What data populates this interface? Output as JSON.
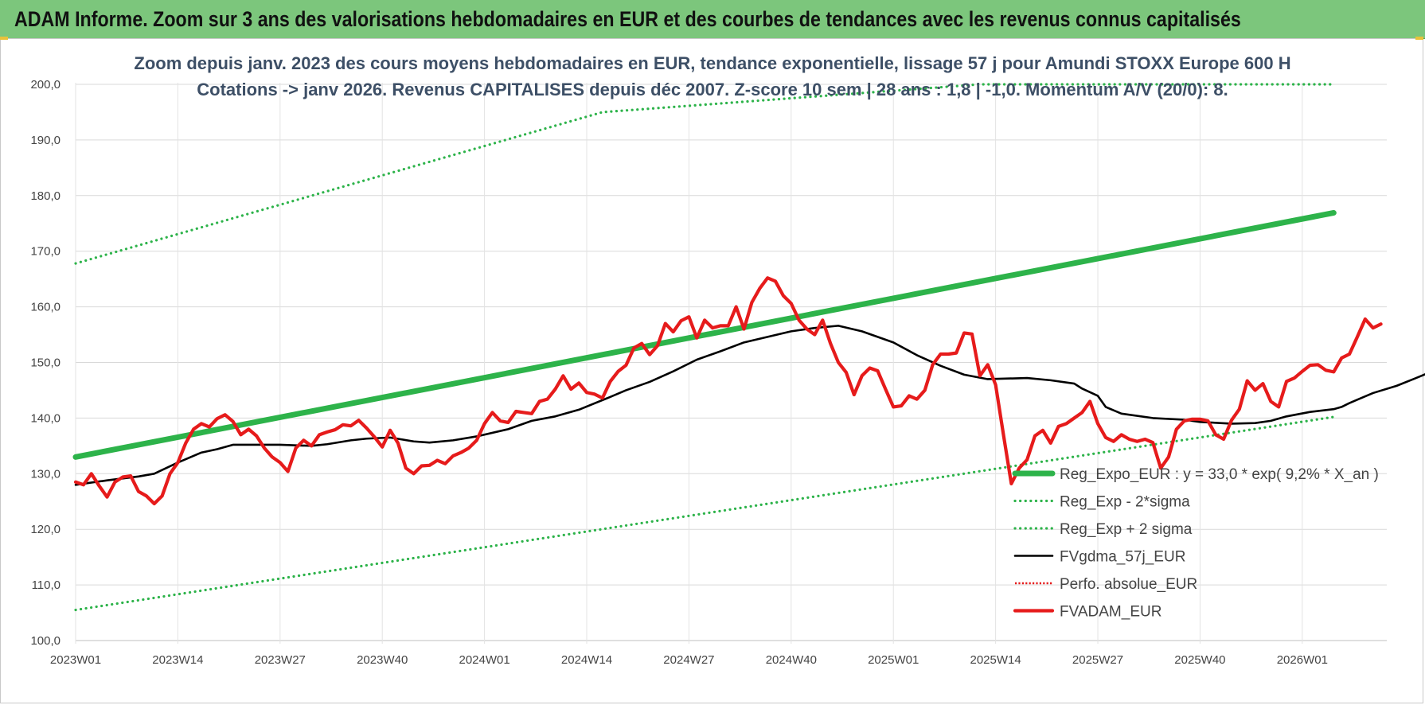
{
  "header": {
    "title": "ADAM Informe. Zoom sur 3 ans des valorisations hebdomadaires en EUR et des courbes de tendances avec les revenus connus capitalisés"
  },
  "chart_data": {
    "type": "line",
    "title": "Zoom depuis janv. 2023 des cours moyens hebdomadaires en EUR, tendance exponentielle, lissage 57 j pour Amundi STOXX Europe 600 H",
    "subtitle": "Cotations -> janv 2026. Revenus CAPITALISES depuis déc 2007. Z-score 10 sem | 28 ans : 1,8 | -1,0. Momentum A/V (20/0): 8.",
    "xlabel": "",
    "ylabel": "",
    "ylim": [
      100,
      200
    ],
    "yticks": [
      "100,0",
      "110,0",
      "120,0",
      "130,0",
      "140,0",
      "150,0",
      "160,0",
      "170,0",
      "180,0",
      "190,0",
      "200,0"
    ],
    "xticks": [
      "2023W01",
      "2023W14",
      "2023W27",
      "2023W40",
      "2024W01",
      "2024W14",
      "2024W27",
      "2024W40",
      "2025W01",
      "2025W14",
      "2025W27",
      "2025W40",
      "2026W01"
    ],
    "x_start_week": "2023W01",
    "x_end_week": "2026W05",
    "grid": "horizontal",
    "legend_position": "bottom-right",
    "series": [
      {
        "name": "Reg_Expo_EUR : y = 33,0 * exp( 9,2% *  X_an )",
        "color": "#2db34a",
        "style": "thick",
        "points": [
          [
            0,
            133.0
          ],
          [
            160,
            176.9
          ]
        ]
      },
      {
        "name": "Reg_Exp - 2*sigma",
        "color": "#2db34a",
        "style": "dotted",
        "points": [
          [
            0,
            105.5
          ],
          [
            160,
            140.2
          ]
        ]
      },
      {
        "name": "Reg_Exp + 2 sigma",
        "color": "#2db34a",
        "style": "dotted",
        "points": [
          [
            0,
            167.8
          ],
          [
            67,
            195.0
          ],
          [
            115,
            200.0
          ],
          [
            160,
            200.0
          ]
        ]
      },
      {
        "name": "FVgdma_57j_EUR",
        "color": "#000000",
        "style": "solid",
        "points": [
          [
            0,
            128.0
          ],
          [
            4,
            128.8
          ],
          [
            8,
            129.5
          ],
          [
            10,
            130.0
          ],
          [
            13,
            132.0
          ],
          [
            16,
            133.8
          ],
          [
            18,
            134.4
          ],
          [
            20,
            135.2
          ],
          [
            26,
            135.2
          ],
          [
            30,
            135.0
          ],
          [
            32,
            135.3
          ],
          [
            35,
            136.0
          ],
          [
            37,
            136.3
          ],
          [
            40,
            136.5
          ],
          [
            43,
            135.8
          ],
          [
            45,
            135.6
          ],
          [
            48,
            136.0
          ],
          [
            51,
            136.7
          ],
          [
            55,
            138.0
          ],
          [
            58,
            139.5
          ],
          [
            61,
            140.3
          ],
          [
            64,
            141.5
          ],
          [
            68,
            143.8
          ],
          [
            70,
            145.0
          ],
          [
            73,
            146.5
          ],
          [
            76,
            148.4
          ],
          [
            79,
            150.5
          ],
          [
            82,
            152.0
          ],
          [
            85,
            153.6
          ],
          [
            88,
            154.6
          ],
          [
            91,
            155.6
          ],
          [
            94,
            156.2
          ],
          [
            97,
            156.6
          ],
          [
            100,
            155.6
          ],
          [
            104,
            153.6
          ],
          [
            107,
            151.3
          ],
          [
            110,
            149.4
          ],
          [
            113,
            147.8
          ],
          [
            116,
            147.0
          ],
          [
            121,
            147.2
          ],
          [
            124,
            146.8
          ],
          [
            127,
            146.2
          ],
          [
            128,
            145.3
          ],
          [
            130,
            144.0
          ],
          [
            131,
            142.0
          ],
          [
            133,
            140.8
          ],
          [
            137,
            140.0
          ],
          [
            141,
            139.7
          ],
          [
            143,
            139.3
          ],
          [
            147,
            139.0
          ],
          [
            150,
            139.1
          ],
          [
            152,
            139.5
          ],
          [
            154,
            140.3
          ],
          [
            157,
            141.1
          ],
          [
            160,
            141.6
          ],
          [
            161,
            142.0
          ],
          [
            162,
            142.7
          ],
          [
            163,
            143.3
          ],
          [
            165,
            144.5
          ],
          [
            168,
            145.8
          ],
          [
            171,
            147.5
          ],
          [
            174,
            149.3
          ],
          [
            177,
            151.0
          ],
          [
            180,
            152.8
          ],
          [
            183,
            153.6
          ]
        ]
      },
      {
        "name": "Perfo. absolue_EUR",
        "color": "#e61b1b",
        "style": "dotted",
        "points": []
      },
      {
        "name": "FVADAM_EUR",
        "color": "#e61b1b",
        "style": "thick",
        "points": [
          [
            0,
            128.5
          ],
          [
            1,
            128.0
          ],
          [
            2,
            130.0
          ],
          [
            3,
            127.8
          ],
          [
            4,
            125.8
          ],
          [
            5,
            128.5
          ],
          [
            6,
            129.4
          ],
          [
            7,
            129.6
          ],
          [
            8,
            126.8
          ],
          [
            9,
            126.0
          ],
          [
            10,
            124.6
          ],
          [
            11,
            126.0
          ],
          [
            12,
            130.0
          ],
          [
            13,
            132.0
          ],
          [
            14,
            135.5
          ],
          [
            15,
            138.0
          ],
          [
            16,
            139.0
          ],
          [
            17,
            138.4
          ],
          [
            18,
            139.9
          ],
          [
            19,
            140.6
          ],
          [
            20,
            139.4
          ],
          [
            21,
            137.0
          ],
          [
            22,
            138.0
          ],
          [
            23,
            136.8
          ],
          [
            24,
            134.6
          ],
          [
            25,
            133.0
          ],
          [
            26,
            132.0
          ],
          [
            27,
            130.4
          ],
          [
            28,
            134.6
          ],
          [
            29,
            136.0
          ],
          [
            30,
            135.0
          ],
          [
            31,
            137.0
          ],
          [
            32,
            137.5
          ],
          [
            33,
            137.9
          ],
          [
            34,
            138.8
          ],
          [
            35,
            138.6
          ],
          [
            36,
            139.6
          ],
          [
            37,
            138.2
          ],
          [
            38,
            136.6
          ],
          [
            39,
            134.8
          ],
          [
            40,
            137.8
          ],
          [
            41,
            135.5
          ],
          [
            42,
            131.0
          ],
          [
            43,
            130.0
          ],
          [
            44,
            131.4
          ],
          [
            45,
            131.5
          ],
          [
            46,
            132.4
          ],
          [
            47,
            131.8
          ],
          [
            48,
            133.2
          ],
          [
            49,
            133.8
          ],
          [
            50,
            134.6
          ],
          [
            51,
            136.0
          ],
          [
            52,
            139.0
          ],
          [
            53,
            141.0
          ],
          [
            54,
            139.5
          ],
          [
            55,
            139.2
          ],
          [
            56,
            141.2
          ],
          [
            57,
            141.0
          ],
          [
            58,
            140.8
          ],
          [
            59,
            143.0
          ],
          [
            60,
            143.4
          ],
          [
            61,
            145.2
          ],
          [
            62,
            147.6
          ],
          [
            63,
            145.2
          ],
          [
            64,
            146.3
          ],
          [
            65,
            144.6
          ],
          [
            66,
            144.3
          ],
          [
            67,
            143.6
          ],
          [
            68,
            146.6
          ],
          [
            69,
            148.4
          ],
          [
            70,
            149.5
          ],
          [
            71,
            152.6
          ],
          [
            72,
            153.4
          ],
          [
            73,
            151.4
          ],
          [
            74,
            153.0
          ],
          [
            75,
            157.0
          ],
          [
            76,
            155.5
          ],
          [
            77,
            157.5
          ],
          [
            78,
            158.2
          ],
          [
            79,
            154.4
          ],
          [
            80,
            157.6
          ],
          [
            81,
            156.2
          ],
          [
            82,
            156.6
          ],
          [
            83,
            156.6
          ],
          [
            84,
            160.0
          ],
          [
            85,
            156.0
          ],
          [
            86,
            160.8
          ],
          [
            87,
            163.3
          ],
          [
            88,
            165.2
          ],
          [
            89,
            164.6
          ],
          [
            90,
            162.0
          ],
          [
            91,
            160.6
          ],
          [
            92,
            157.6
          ],
          [
            93,
            156.0
          ],
          [
            94,
            155.0
          ],
          [
            95,
            157.6
          ],
          [
            96,
            153.4
          ],
          [
            97,
            150.0
          ],
          [
            98,
            148.2
          ],
          [
            99,
            144.2
          ],
          [
            100,
            147.6
          ],
          [
            101,
            149.0
          ],
          [
            102,
            148.5
          ],
          [
            103,
            145.2
          ],
          [
            104,
            142.0
          ],
          [
            105,
            142.2
          ],
          [
            106,
            144.0
          ],
          [
            107,
            143.4
          ],
          [
            108,
            145.0
          ],
          [
            109,
            149.6
          ],
          [
            110,
            151.5
          ],
          [
            111,
            151.5
          ],
          [
            112,
            151.7
          ],
          [
            113,
            155.3
          ],
          [
            114,
            155.1
          ],
          [
            115,
            147.6
          ],
          [
            116,
            149.6
          ],
          [
            117,
            146.0
          ],
          [
            118,
            137.0
          ],
          [
            119,
            128.2
          ],
          [
            120,
            131.0
          ],
          [
            121,
            132.5
          ],
          [
            122,
            136.8
          ],
          [
            123,
            137.8
          ],
          [
            124,
            135.5
          ],
          [
            125,
            138.5
          ],
          [
            126,
            139.0
          ],
          [
            127,
            140.0
          ],
          [
            128,
            141.0
          ],
          [
            129,
            143.0
          ],
          [
            130,
            139.0
          ],
          [
            131,
            136.5
          ],
          [
            132,
            135.8
          ],
          [
            133,
            137.0
          ],
          [
            134,
            136.2
          ],
          [
            135,
            135.8
          ],
          [
            136,
            136.2
          ],
          [
            137,
            135.6
          ],
          [
            138,
            131.0
          ],
          [
            139,
            133.0
          ],
          [
            140,
            138.0
          ],
          [
            141,
            139.5
          ],
          [
            142,
            139.8
          ],
          [
            143,
            139.8
          ],
          [
            144,
            139.5
          ],
          [
            145,
            137.0
          ],
          [
            146,
            136.2
          ],
          [
            147,
            139.6
          ],
          [
            148,
            141.6
          ],
          [
            149,
            146.7
          ],
          [
            150,
            145.0
          ],
          [
            151,
            146.2
          ],
          [
            152,
            143.0
          ],
          [
            153,
            142.0
          ],
          [
            154,
            146.6
          ],
          [
            155,
            147.2
          ],
          [
            156,
            148.4
          ],
          [
            157,
            149.5
          ],
          [
            158,
            149.6
          ],
          [
            159,
            148.6
          ],
          [
            160,
            148.3
          ],
          [
            161,
            150.8
          ],
          [
            162,
            151.5
          ],
          [
            163,
            154.6
          ],
          [
            164,
            157.8
          ],
          [
            165,
            156.2
          ],
          [
            166,
            156.9
          ]
        ]
      }
    ]
  }
}
